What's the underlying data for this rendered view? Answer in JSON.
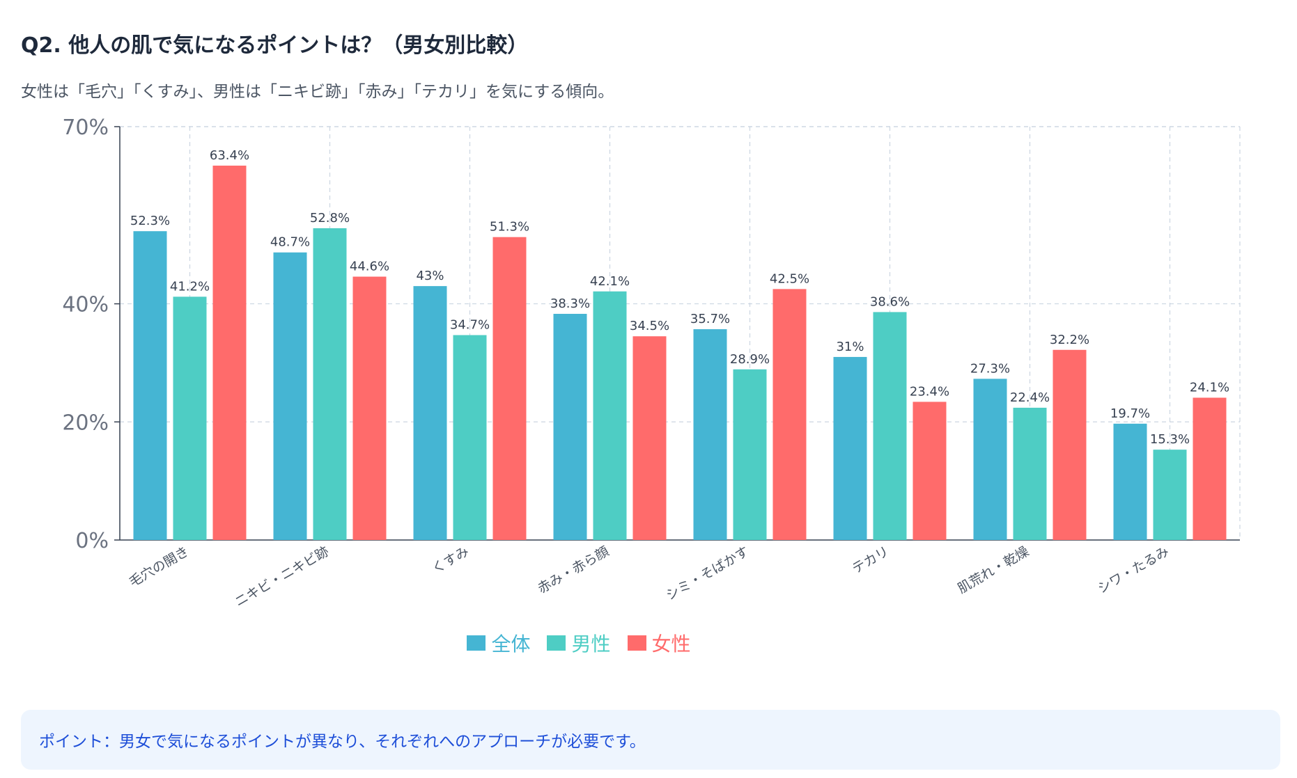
{
  "header": {
    "title": "Q2. 他人の肌で気になるポイントは？（男女別比較）",
    "subtitle": "女性は「毛穴」「くすみ」、男性は「ニキビ跡」「赤み」「テカリ」を気にする傾向。"
  },
  "chart_data": {
    "type": "bar",
    "categories": [
      "毛穴の開き",
      "ニキビ・ニキビ跡",
      "くすみ",
      "赤み・赤ら顔",
      "シミ・そばかす",
      "テカリ",
      "肌荒れ・乾燥",
      "シワ・たるみ"
    ],
    "series": [
      {
        "name": "全体",
        "color": "#45b5d3",
        "values": [
          52.3,
          48.7,
          43,
          38.3,
          35.7,
          31,
          27.3,
          19.7
        ]
      },
      {
        "name": "男性",
        "color": "#4ecdc4",
        "values": [
          41.2,
          52.8,
          34.7,
          42.1,
          28.9,
          38.6,
          22.4,
          15.3
        ]
      },
      {
        "name": "女性",
        "color": "#ff6b6b",
        "values": [
          63.4,
          44.6,
          51.3,
          34.5,
          42.5,
          23.4,
          32.2,
          24.1
        ]
      }
    ],
    "yticks": [
      {
        "value": 0,
        "label": "0%"
      },
      {
        "value": 20,
        "label": "20%"
      },
      {
        "value": 40,
        "label": "40%"
      },
      {
        "value": 70,
        "label": "70%"
      }
    ],
    "ylim": [
      0,
      70
    ],
    "grid": true,
    "legend": "bottom-center",
    "value_suffix": "%"
  },
  "note": {
    "text": "ポイント：男女で気になるポイントが異なり、それぞれへのアプローチが必要です。"
  }
}
